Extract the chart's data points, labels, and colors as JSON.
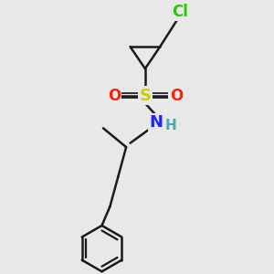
{
  "bg_color": "#e8e8e8",
  "bond_color": "#1a1a1a",
  "cl_color": "#22cc00",
  "s_color": "#cccc00",
  "o_color": "#ff2200",
  "n_color": "#2222ff",
  "h_color": "#44aaaa",
  "line_width": 1.8,
  "font_size": 11,
  "figsize": [
    3.0,
    3.0
  ],
  "dpi": 100,
  "xlim": [
    0,
    10
  ],
  "ylim": [
    0,
    10
  ]
}
